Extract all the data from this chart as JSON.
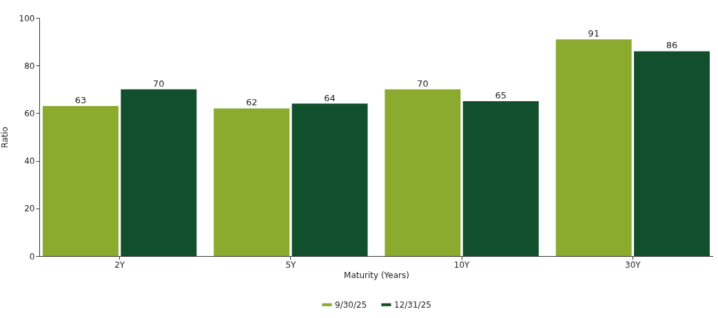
{
  "chart_data": {
    "type": "bar",
    "xlabel": "Maturity (Years)",
    "ylabel": "Ratio",
    "categories": [
      "2Y",
      "5Y",
      "10Y",
      "30Y"
    ],
    "series": [
      {
        "name": "9/30/25",
        "color": "#8aab2e",
        "values": [
          63,
          62,
          70,
          91
        ]
      },
      {
        "name": "12/31/25",
        "color": "#124f2c",
        "values": [
          70,
          64,
          65,
          86
        ]
      }
    ],
    "ylim": [
      0,
      100
    ],
    "yticks": [
      0,
      20,
      40,
      60,
      80,
      100
    ],
    "grid": false,
    "legend": "bottom",
    "data_labels": true
  }
}
